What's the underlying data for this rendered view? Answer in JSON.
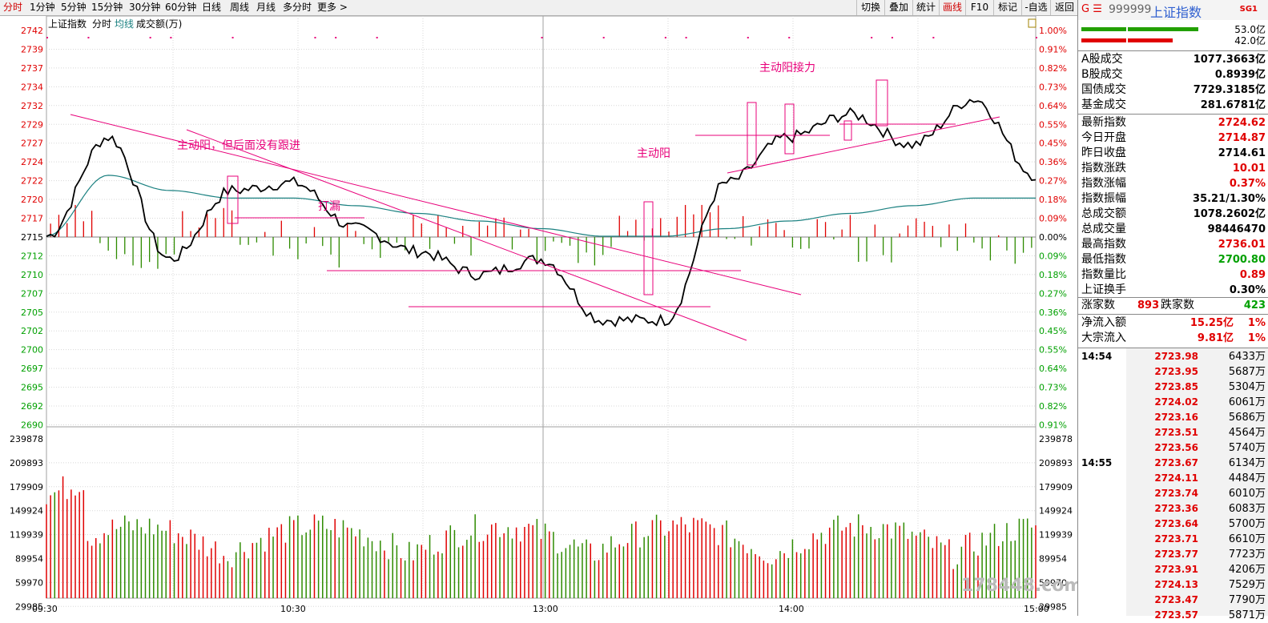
{
  "toolbar": {
    "periods": [
      "分时",
      "1分钟",
      "5分钟",
      "15分钟",
      "30分钟",
      "60分钟",
      "日线",
      "周线",
      "月线",
      "多分时",
      "更多 >"
    ],
    "active_period": 0,
    "right_buttons": [
      "切换",
      "叠加",
      "统计",
      "画线",
      "F10",
      "标记",
      "-自选",
      "返回"
    ],
    "active_right": 3
  },
  "chart": {
    "title": "上证指数",
    "legend": [
      "分时",
      "均线",
      "成交额(万)"
    ],
    "price_labels": [
      "2742",
      "2739",
      "2737",
      "2734",
      "2732",
      "2729",
      "2727",
      "2724",
      "2722",
      "2720",
      "2717",
      "2715",
      "2712",
      "2710",
      "2707",
      "2705",
      "2702",
      "2700",
      "2697",
      "2695",
      "2692",
      "2690"
    ],
    "pct_labels": [
      "1.00%",
      "0.91%",
      "0.82%",
      "0.73%",
      "0.64%",
      "0.55%",
      "0.45%",
      "0.36%",
      "0.27%",
      "0.18%",
      "0.09%",
      "0.00%",
      "0.09%",
      "0.18%",
      "0.27%",
      "0.36%",
      "0.45%",
      "0.55%",
      "0.64%",
      "0.73%",
      "0.82%",
      "0.91%"
    ],
    "vol_labels": [
      "239878",
      "209893",
      "179909",
      "149924",
      "119939",
      "89954",
      "59970",
      "29985"
    ],
    "time_labels": [
      "09:30",
      "10:30",
      "13:00",
      "14:00",
      "15:00"
    ],
    "annotations": [
      "主动阳，但后面没有跟进",
      "打漏",
      "主动阳",
      "主动阳接力"
    ],
    "watermark": "178448.com",
    "colors": {
      "price": "#000000",
      "avg": "#1a8080",
      "up": "#e00000",
      "down": "#2e8b00",
      "draw": "#e8007a",
      "axis_red": "#e00000",
      "axis_green": "#00a000"
    }
  },
  "chart_data": {
    "type": "line",
    "ylim": [
      2690,
      2742
    ],
    "x": [
      "09:30",
      "09:45",
      "10:00",
      "10:15",
      "10:30",
      "10:45",
      "11:00",
      "11:15",
      "11:30/13:00",
      "13:15",
      "13:30",
      "13:45",
      "14:00",
      "14:15",
      "14:30",
      "14:45",
      "15:00"
    ],
    "series": [
      {
        "name": "分时",
        "values": [
          2715,
          2728,
          2712,
          2721,
          2722,
          2716,
          2713,
          2710,
          2712,
          2704,
          2704,
          2722,
          2728,
          2731,
          2727,
          2733,
          2723
        ]
      },
      {
        "name": "均线",
        "values": [
          2715,
          2723,
          2721,
          2720,
          2720,
          2719,
          2718,
          2717,
          2716,
          2715,
          2715,
          2716,
          2717,
          2718,
          2719,
          2720,
          2720
        ]
      }
    ]
  },
  "side": {
    "code_prefix": "G ☰",
    "code": "999999",
    "name": "上证指数",
    "tag": "SG1",
    "bars": [
      "53.0亿",
      "42.0亿"
    ],
    "stats1": [
      {
        "label": "A股成交",
        "value": "1077.3663亿"
      },
      {
        "label": "B股成交",
        "value": "0.8939亿"
      },
      {
        "label": "国债成交",
        "value": "7729.3185亿"
      },
      {
        "label": "基金成交",
        "value": "281.6781亿"
      }
    ],
    "stats2": [
      {
        "label": "最新指数",
        "value": "2724.62",
        "color": "#e00000"
      },
      {
        "label": "今日开盘",
        "value": "2714.87",
        "color": "#e00000"
      },
      {
        "label": "昨日收盘",
        "value": "2714.61",
        "color": "#000000"
      },
      {
        "label": "指数涨跌",
        "value": "10.01",
        "color": "#e00000"
      },
      {
        "label": "指数涨幅",
        "value": "0.37%",
        "color": "#e00000"
      },
      {
        "label": "指数振幅",
        "value": "35.21/1.30%",
        "color": "#000000"
      },
      {
        "label": "总成交额",
        "value": "1078.2602亿",
        "color": "#000000"
      },
      {
        "label": "总成交量",
        "value": "98446470",
        "color": "#000000"
      },
      {
        "label": "最高指数",
        "value": "2736.01",
        "color": "#e00000"
      },
      {
        "label": "最低指数",
        "value": "2700.80",
        "color": "#00a000"
      },
      {
        "label": "指数量比",
        "value": "0.89",
        "color": "#e00000"
      },
      {
        "label": "上证换手",
        "value": "0.30%",
        "color": "#000000"
      }
    ],
    "adv_label": "涨家数",
    "adv_value": "893",
    "dec_label": "跌家数",
    "dec_value": "423",
    "flow": [
      {
        "label": "净流入额",
        "value": "15.25亿",
        "pct": "1%"
      },
      {
        "label": "大宗流入",
        "value": "9.81亿",
        "pct": "1%"
      }
    ],
    "ticks": [
      {
        "time": "14:54",
        "price": "2723.98",
        "vol": "6433万"
      },
      {
        "time": "",
        "price": "2723.95",
        "vol": "5687万"
      },
      {
        "time": "",
        "price": "2723.85",
        "vol": "5304万"
      },
      {
        "time": "",
        "price": "2724.02",
        "vol": "6061万"
      },
      {
        "time": "",
        "price": "2723.16",
        "vol": "5686万"
      },
      {
        "time": "",
        "price": "2723.51",
        "vol": "4564万"
      },
      {
        "time": "",
        "price": "2723.56",
        "vol": "5740万"
      },
      {
        "time": "14:55",
        "price": "2723.67",
        "vol": "6134万"
      },
      {
        "time": "",
        "price": "2724.11",
        "vol": "4484万"
      },
      {
        "time": "",
        "price": "2723.74",
        "vol": "6010万"
      },
      {
        "time": "",
        "price": "2723.36",
        "vol": "6083万"
      },
      {
        "time": "",
        "price": "2723.64",
        "vol": "5700万"
      },
      {
        "time": "",
        "price": "2723.71",
        "vol": "6610万"
      },
      {
        "time": "",
        "price": "2723.77",
        "vol": "7723万"
      },
      {
        "time": "",
        "price": "2723.91",
        "vol": "4206万"
      },
      {
        "time": "",
        "price": "2724.13",
        "vol": "7529万"
      },
      {
        "time": "",
        "price": "2723.47",
        "vol": "7790万"
      },
      {
        "time": "",
        "price": "2723.57",
        "vol": "5871万"
      }
    ]
  }
}
